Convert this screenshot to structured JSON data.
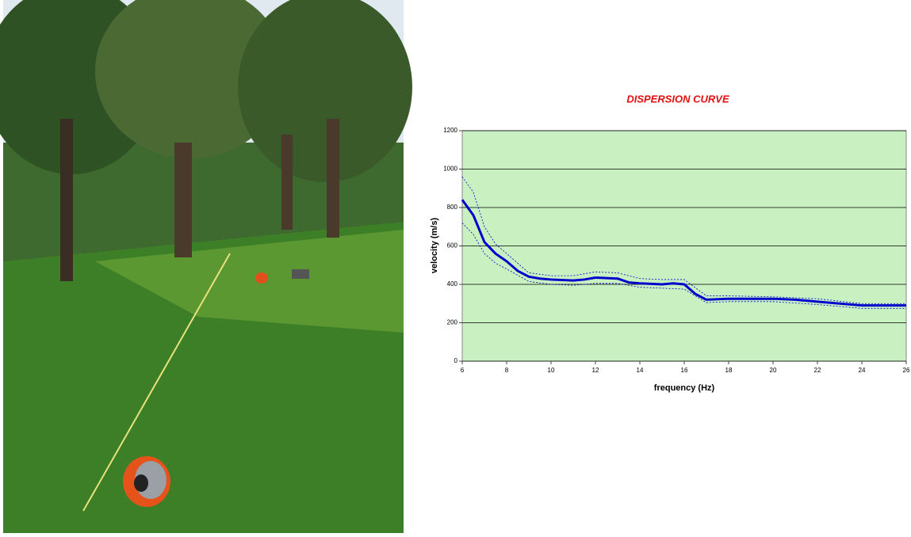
{
  "chart_data": {
    "type": "line",
    "title": "DISPERSION CURVE",
    "x_label": "frequency (Hz)",
    "y_label": "velocity (m/s)",
    "xlim": [
      6,
      26
    ],
    "xticks": [
      6,
      8,
      10,
      12,
      14,
      16,
      18,
      20,
      22,
      24,
      26
    ],
    "ylim": [
      0,
      1200
    ],
    "yticks": [
      0,
      200,
      400,
      600,
      800,
      1000,
      1200
    ],
    "grid": true,
    "series": [
      {
        "color": "#0000cc",
        "dashed": false,
        "x": [
          6,
          6.5,
          7,
          7.5,
          8,
          8.5,
          9,
          9.5,
          10,
          11,
          11.5,
          12,
          13,
          13.5,
          14,
          15,
          15.5,
          16,
          16.5,
          17,
          18,
          20,
          21,
          22,
          23,
          24,
          25,
          26
        ],
        "values": [
          840,
          760,
          620,
          560,
          520,
          470,
          440,
          430,
          425,
          420,
          425,
          435,
          430,
          410,
          405,
          400,
          405,
          400,
          350,
          320,
          325,
          325,
          320,
          310,
          300,
          290,
          290,
          290
        ]
      },
      {
        "color": "#0000cc",
        "dashed": true,
        "x": [
          6,
          6.5,
          7,
          7.5,
          8,
          9,
          10,
          11,
          12,
          13,
          14,
          15,
          16,
          17,
          18,
          20,
          22,
          24,
          26
        ],
        "values": [
          960,
          880,
          700,
          610,
          560,
          460,
          445,
          445,
          465,
          460,
          430,
          425,
          425,
          340,
          340,
          335,
          325,
          300,
          300
        ]
      },
      {
        "color": "#0000cc",
        "dashed": true,
        "x": [
          6,
          6.5,
          7,
          7.5,
          8,
          9,
          10,
          11,
          12,
          13,
          14,
          15,
          16,
          17,
          18,
          20,
          22,
          24,
          26
        ],
        "values": [
          720,
          660,
          560,
          510,
          480,
          415,
          400,
          395,
          405,
          405,
          385,
          380,
          375,
          305,
          310,
          310,
          295,
          275,
          275
        ]
      }
    ]
  }
}
